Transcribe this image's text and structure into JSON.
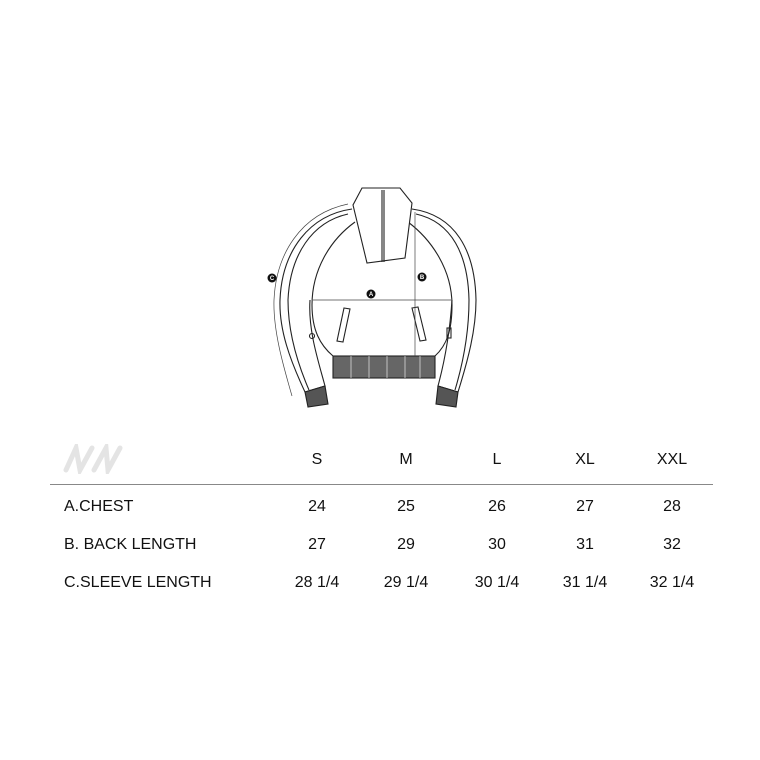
{
  "diagram": {
    "labels": [
      "A",
      "B",
      "C"
    ]
  },
  "logo": {
    "text": "N/N"
  },
  "table": {
    "sizes": [
      "S",
      "M",
      "L",
      "XL",
      "XXL"
    ],
    "rows": [
      {
        "label": "A.CHEST",
        "values": [
          "24",
          "25",
          "26",
          "27",
          "28"
        ]
      },
      {
        "label": "B. BACK LENGTH",
        "values": [
          "27",
          "29",
          "30",
          "31",
          "32"
        ]
      },
      {
        "label": "C.SLEEVE LENGTH",
        "values": [
          "28 1/4",
          "29 1/4",
          "30 1/4",
          "31 1/4",
          "32 1/4"
        ]
      }
    ]
  }
}
